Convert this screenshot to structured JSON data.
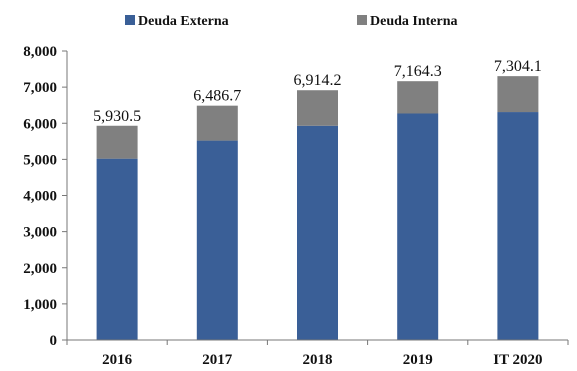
{
  "chart_data": {
    "type": "bar",
    "stacked": true,
    "categories": [
      "2016",
      "2017",
      "2018",
      "2019",
      "IT 2020"
    ],
    "series": [
      {
        "name": "Deuda Externa",
        "color": "#3a5f97",
        "values": [
          5020,
          5520,
          5930,
          6270,
          6310
        ]
      },
      {
        "name": "Deuda Interna",
        "color": "#808080",
        "values": [
          910.5,
          966.7,
          984.2,
          894.3,
          994.1
        ]
      }
    ],
    "totals": [
      "5,930.5",
      "6,486.7",
      "6,914.2",
      "7,164.3",
      "7,304.1"
    ],
    "total_values": [
      5930.5,
      6486.7,
      6914.2,
      7164.3,
      7304.1
    ],
    "y_ticks": [
      "0",
      "1,000",
      "2,000",
      "3,000",
      "4,000",
      "5,000",
      "6,000",
      "7,000",
      "8,000"
    ],
    "ylim": [
      0,
      8000
    ],
    "grid": false,
    "legend_position": "top",
    "title": "",
    "xlabel": "",
    "ylabel": ""
  }
}
